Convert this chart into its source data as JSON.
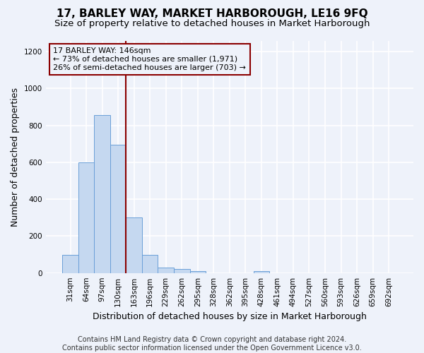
{
  "title": "17, BARLEY WAY, MARKET HARBOROUGH, LE16 9FQ",
  "subtitle": "Size of property relative to detached houses in Market Harborough",
  "xlabel": "Distribution of detached houses by size in Market Harborough",
  "ylabel": "Number of detached properties",
  "bar_labels": [
    "31sqm",
    "64sqm",
    "97sqm",
    "130sqm",
    "163sqm",
    "196sqm",
    "229sqm",
    "262sqm",
    "295sqm",
    "328sqm",
    "362sqm",
    "395sqm",
    "428sqm",
    "461sqm",
    "494sqm",
    "527sqm",
    "560sqm",
    "593sqm",
    "626sqm",
    "659sqm",
    "692sqm"
  ],
  "bar_values": [
    100,
    600,
    855,
    695,
    300,
    100,
    30,
    20,
    10,
    0,
    0,
    0,
    10,
    0,
    0,
    0,
    0,
    0,
    0,
    0,
    0
  ],
  "bar_color": "#c5d8f0",
  "bar_edge_color": "#6a9fd8",
  "ylim": [
    0,
    1260
  ],
  "yticks": [
    0,
    200,
    400,
    600,
    800,
    1000,
    1200
  ],
  "property_line_x": 3.5,
  "property_line_color": "#8b0000",
  "annotation_text": "17 BARLEY WAY: 146sqm\n← 73% of detached houses are smaller (1,971)\n26% of semi-detached houses are larger (703) →",
  "annotation_box_color": "#8b0000",
  "footer_line1": "Contains HM Land Registry data © Crown copyright and database right 2024.",
  "footer_line2": "Contains public sector information licensed under the Open Government Licence v3.0.",
  "background_color": "#eef2fa",
  "grid_color": "#ffffff",
  "title_fontsize": 11,
  "subtitle_fontsize": 9.5,
  "ylabel_fontsize": 9,
  "xlabel_fontsize": 9,
  "tick_fontsize": 7.5,
  "footer_fontsize": 7,
  "annot_fontsize": 8
}
